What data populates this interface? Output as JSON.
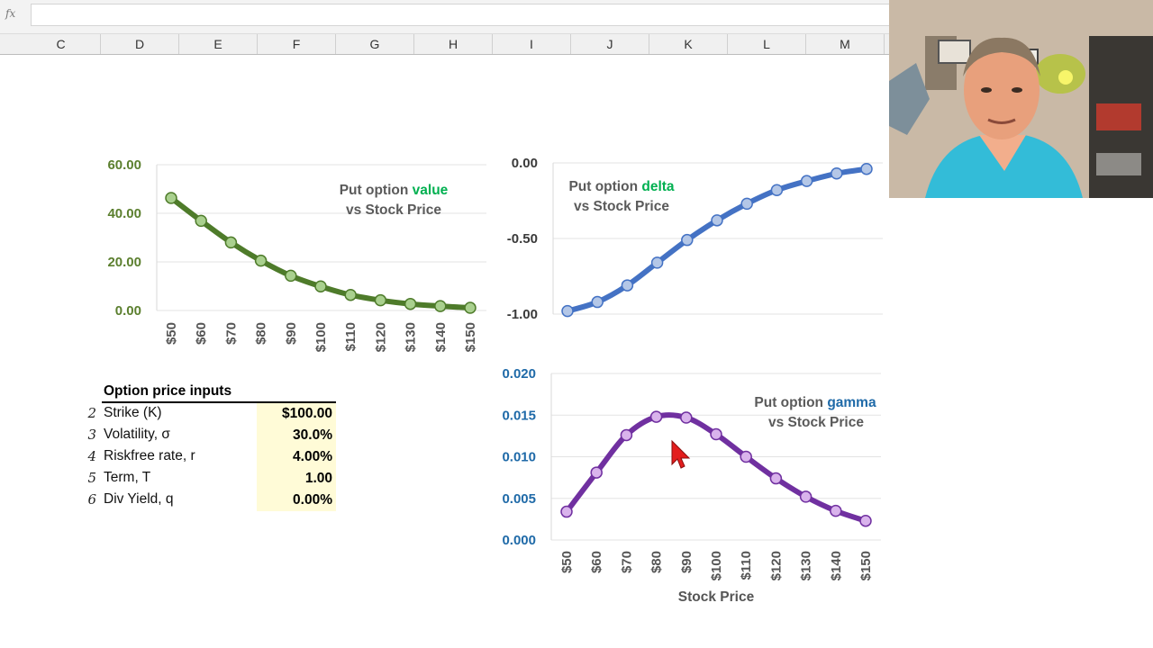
{
  "formula_bar": {
    "fx_label": "fx",
    "value": ""
  },
  "columns": [
    "C",
    "D",
    "E",
    "F",
    "G",
    "H",
    "I",
    "J",
    "K",
    "L",
    "M"
  ],
  "colors": {
    "value_series": "#4e7b2a",
    "value_marker": "#a9d08e",
    "delta_series": "#4472c4",
    "delta_marker": "#b4c7e7",
    "gamma_series": "#7030a0",
    "gamma_marker": "#d9b3ec",
    "value_accent": "#00b050",
    "delta_accent": "#00b050",
    "gamma_accent": "#1f6aa8",
    "input_fill": "#fffbd7"
  },
  "chart_data": [
    {
      "type": "line",
      "title": "Put option value vs Stock Price",
      "title_lines": [
        "Put option ",
        "value",
        "vs Stock Price"
      ],
      "xlabel": "",
      "ylabel": "",
      "categories": [
        "$50",
        "$60",
        "$70",
        "$80",
        "$90",
        "$100",
        "$110",
        "$120",
        "$130",
        "$140",
        "$150"
      ],
      "yticks": [
        "0.00",
        "20.00",
        "40.00",
        "60.00"
      ],
      "ylim": [
        0,
        60
      ],
      "grid": true,
      "series": [
        {
          "values": [
            46.3,
            36.9,
            28.0,
            20.5,
            14.3,
            9.9,
            6.4,
            4.2,
            2.7,
            1.8,
            1.1
          ]
        }
      ]
    },
    {
      "type": "line",
      "title": "Put option delta vs Stock Price",
      "title_lines": [
        "Put option ",
        "delta",
        "vs Stock Price"
      ],
      "xlabel": "",
      "ylabel": "",
      "categories": [
        "$50",
        "$60",
        "$70",
        "$80",
        "$90",
        "$100",
        "$110",
        "$120",
        "$130",
        "$140",
        "$150"
      ],
      "yticks": [
        "-1.00",
        "-0.50",
        "0.00"
      ],
      "ylim": [
        -1,
        0
      ],
      "grid": true,
      "series": [
        {
          "values": [
            -0.98,
            -0.92,
            -0.81,
            -0.66,
            -0.51,
            -0.38,
            -0.27,
            -0.18,
            -0.12,
            -0.07,
            -0.04
          ]
        }
      ]
    },
    {
      "type": "line",
      "title": "Put option gamma vs Stock Price",
      "title_lines": [
        "Put option ",
        "gamma",
        "vs Stock Price"
      ],
      "xlabel": "Stock Price",
      "ylabel": "",
      "categories": [
        "$50",
        "$60",
        "$70",
        "$80",
        "$90",
        "$100",
        "$110",
        "$120",
        "$130",
        "$140",
        "$150"
      ],
      "yticks": [
        "0.000",
        "0.005",
        "0.010",
        "0.015",
        "0.020"
      ],
      "ylim": [
        0,
        0.02
      ],
      "grid": true,
      "series": [
        {
          "values": [
            0.0034,
            0.0081,
            0.0126,
            0.0148,
            0.0147,
            0.0127,
            0.01,
            0.0074,
            0.0052,
            0.0035,
            0.0023
          ]
        }
      ]
    }
  ],
  "inputs": {
    "header": "Option price inputs",
    "rows": [
      {
        "num": "2",
        "label": "Strike (K)",
        "value": "$100.00",
        "bold": true
      },
      {
        "num": "3",
        "label": "Volatility, σ",
        "value": "30.0%",
        "bold": true
      },
      {
        "num": "4",
        "label": "Riskfree rate, r",
        "value": "4.00%",
        "bold": true
      },
      {
        "num": "5",
        "label": "Term, T",
        "value": "1.00",
        "bold": true
      },
      {
        "num": "6",
        "label": "Div Yield, q",
        "value": "0.00%",
        "bold": true
      }
    ]
  }
}
